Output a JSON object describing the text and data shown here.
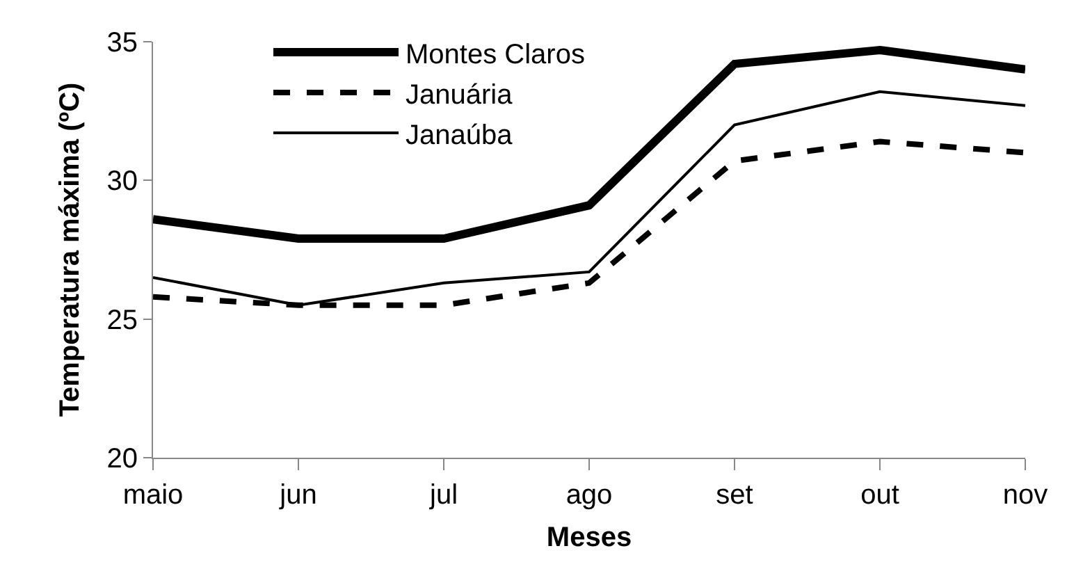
{
  "chart_data": {
    "type": "line",
    "xlabel": "Meses",
    "ylabel": "Temperatura máxima (ºC)",
    "categories": [
      "maio",
      "jun",
      "jul",
      "ago",
      "set",
      "out",
      "nov"
    ],
    "ylim": [
      20,
      35
    ],
    "yticks": [
      20,
      25,
      30,
      35
    ],
    "grid": false,
    "legend": "top",
    "marker": "none",
    "series": [
      {
        "name": "Montes Claros",
        "color": "#000000",
        "line_style": "solid",
        "values": [
          28.6,
          27.9,
          27.9,
          29.1,
          34.2,
          34.7,
          34.0
        ]
      },
      {
        "name": "Januária",
        "color": "#000000",
        "line_style": "dashed",
        "values": [
          25.8,
          25.5,
          25.5,
          26.3,
          30.7,
          31.4,
          31.0
        ]
      },
      {
        "name": "Janaúba",
        "color": "#000000",
        "line_style": "solid",
        "values": [
          26.5,
          25.5,
          26.3,
          26.7,
          32.0,
          33.2,
          32.7
        ]
      }
    ]
  }
}
